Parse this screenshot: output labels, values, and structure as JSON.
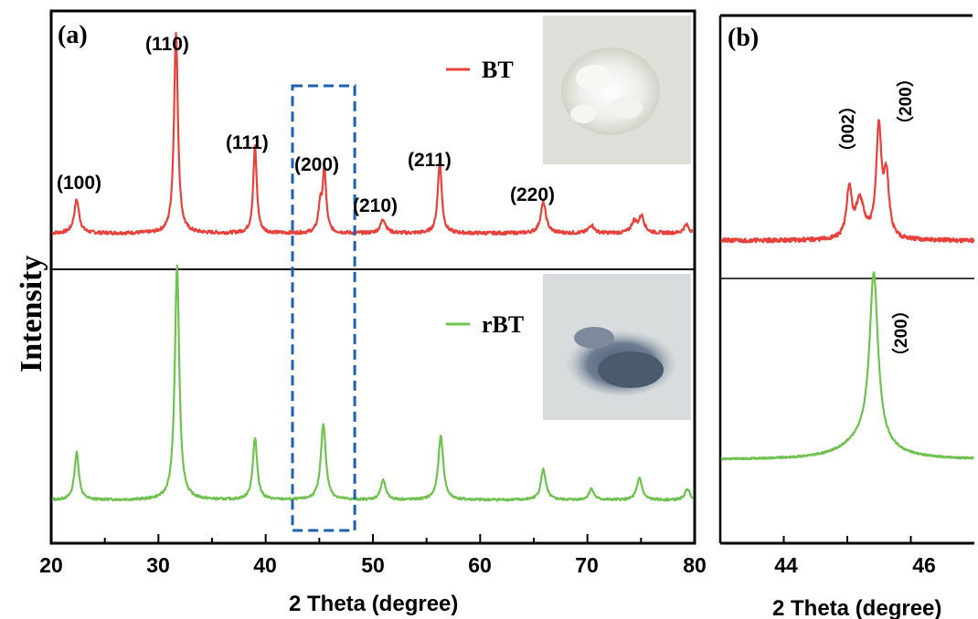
{
  "chart_data": [
    {
      "panel": "(a)",
      "type": "line",
      "xlabel": "2 Theta (degree)",
      "ylabel": "Intensity",
      "xlim": [
        20,
        80
      ],
      "xticks": [
        "20",
        "30",
        "40",
        "50",
        "60",
        "70",
        "80"
      ],
      "series": [
        {
          "name": "BT",
          "color": "#e8403a",
          "baseline": 0.09,
          "peaks": [
            {
              "x": 22.3,
              "h": 0.12,
              "w": 0.28
            },
            {
              "x": 31.6,
              "h": 0.72,
              "w": 0.22
            },
            {
              "x": 39.0,
              "h": 0.31,
              "w": 0.2
            },
            {
              "x": 45.1,
              "h": 0.09,
              "w": 0.2
            },
            {
              "x": 45.5,
              "h": 0.22,
              "w": 0.2
            },
            {
              "x": 51.0,
              "h": 0.05,
              "w": 0.3
            },
            {
              "x": 56.3,
              "h": 0.26,
              "w": 0.22
            },
            {
              "x": 66.0,
              "h": 0.11,
              "w": 0.3
            },
            {
              "x": 70.5,
              "h": 0.03,
              "w": 0.3
            },
            {
              "x": 74.5,
              "h": 0.04,
              "w": 0.3
            },
            {
              "x": 75.2,
              "h": 0.06,
              "w": 0.3
            },
            {
              "x": 79.4,
              "h": 0.03,
              "w": 0.3
            }
          ]
        },
        {
          "name": "rBT",
          "color": "#6fc24f",
          "baseline": 0.06,
          "peaks": [
            {
              "x": 22.3,
              "h": 0.17,
              "w": 0.25
            },
            {
              "x": 31.7,
              "h": 0.84,
              "w": 0.25
            },
            {
              "x": 39.0,
              "h": 0.22,
              "w": 0.25
            },
            {
              "x": 45.4,
              "h": 0.27,
              "w": 0.28
            },
            {
              "x": 51.0,
              "h": 0.07,
              "w": 0.28
            },
            {
              "x": 56.4,
              "h": 0.23,
              "w": 0.28
            },
            {
              "x": 66.0,
              "h": 0.11,
              "w": 0.28
            },
            {
              "x": 70.5,
              "h": 0.04,
              "w": 0.28
            },
            {
              "x": 75.0,
              "h": 0.08,
              "w": 0.28
            },
            {
              "x": 79.5,
              "h": 0.04,
              "w": 0.28
            }
          ]
        }
      ],
      "annotations": [
        {
          "text": "(100)",
          "x": 22.3
        },
        {
          "text": "(110)",
          "x": 31.6
        },
        {
          "text": "(111)",
          "x": 39.0
        },
        {
          "text": "(200)",
          "x": 45.5
        },
        {
          "text": "(210)",
          "x": 51.0
        },
        {
          "text": "(211)",
          "x": 56.3
        },
        {
          "text": "(220)",
          "x": 66.0
        }
      ],
      "highlight_range": [
        42.5,
        48.3
      ]
    },
    {
      "panel": "(b)",
      "type": "line",
      "xlabel": "2 Theta (degree)",
      "xlim": [
        43,
        47
      ],
      "xticks": [
        "44",
        "46"
      ],
      "series": [
        {
          "name": "BT",
          "color": "#e8403a",
          "baseline": 0.05,
          "peaks": [
            {
              "x": 45.03,
              "h": 0.23,
              "w": 0.05
            },
            {
              "x": 45.2,
              "h": 0.18,
              "w": 0.08
            },
            {
              "x": 45.5,
              "h": 0.52,
              "w": 0.05
            },
            {
              "x": 45.62,
              "h": 0.28,
              "w": 0.05
            }
          ]
        },
        {
          "name": "rBT",
          "color": "#6fc24f",
          "baseline": 0.05,
          "peaks": [
            {
              "x": 45.42,
              "h": 0.8,
              "w": 0.08
            },
            {
              "x": 45.3,
              "h": 0.1,
              "w": 0.4
            }
          ]
        }
      ],
      "annotations": [
        {
          "text": "（002）",
          "x": 44.95
        },
        {
          "text": "（200）",
          "x": 45.65
        },
        {
          "text": "（200）",
          "x": 45.65
        }
      ]
    }
  ]
}
